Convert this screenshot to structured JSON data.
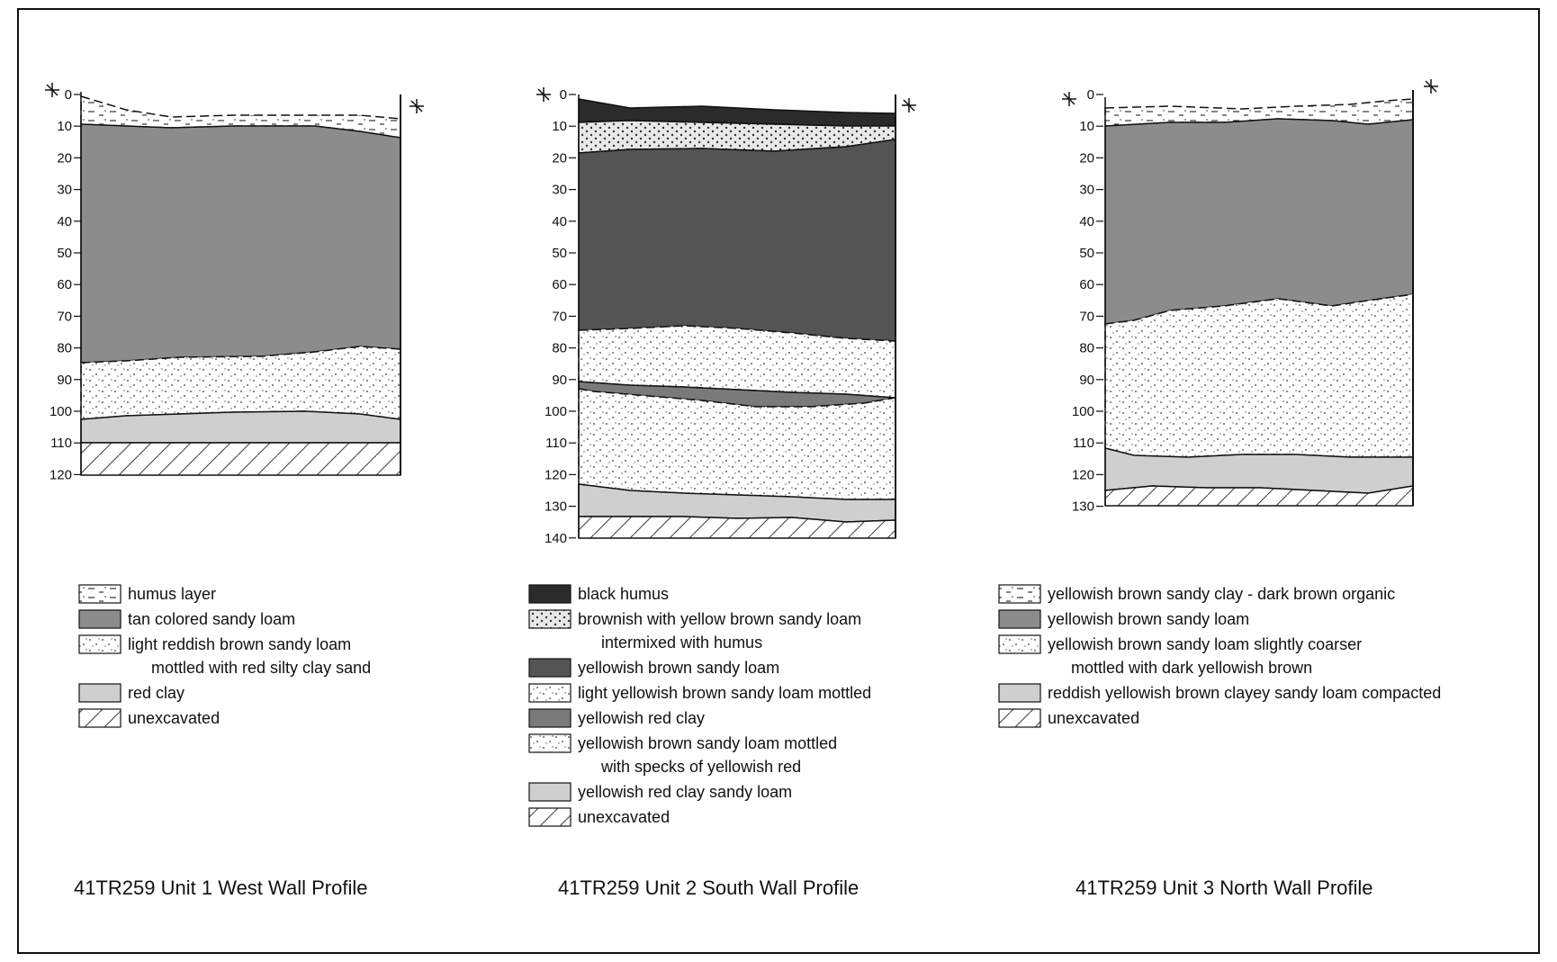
{
  "colors": {
    "black_humus": "#2b2b2b",
    "dark_brown": "#545454",
    "medium_gray": "#8c8c8c",
    "mid_gray": "#7a7a7a",
    "light_gray": "#cfcfcf",
    "white": "#ffffff"
  },
  "profiles": [
    {
      "caption": "41TR259 Unit 1 West Wall Profile",
      "ticks": [
        "0",
        "10",
        "20",
        "30",
        "40",
        "50",
        "60",
        "70",
        "80",
        "90",
        "100",
        "110",
        "120"
      ],
      "legend": [
        {
          "pattern": "humus",
          "lines": [
            "humus layer"
          ]
        },
        {
          "pattern": "tan",
          "lines": [
            "tan colored sandy loam"
          ]
        },
        {
          "pattern": "dots",
          "lines": [
            "light reddish brown sandy loam",
            "mottled with red silty clay sand"
          ]
        },
        {
          "pattern": "redclay",
          "lines": [
            "red clay"
          ]
        },
        {
          "pattern": "hatch",
          "lines": [
            "unexcavated"
          ]
        }
      ]
    },
    {
      "caption": "41TR259 Unit 2 South Wall Profile",
      "ticks": [
        "0",
        "10",
        "20",
        "30",
        "40",
        "50",
        "60",
        "70",
        "80",
        "90",
        "100",
        "110",
        "120",
        "130",
        "140"
      ],
      "legend": [
        {
          "pattern": "black",
          "lines": [
            "black humus"
          ]
        },
        {
          "pattern": "mixed",
          "lines": [
            "brownish with yellow brown sandy loam",
            "intermixed with humus"
          ]
        },
        {
          "pattern": "dark",
          "lines": [
            "yellowish brown sandy loam"
          ]
        },
        {
          "pattern": "dots",
          "lines": [
            "light yellowish brown sandy loam mottled"
          ]
        },
        {
          "pattern": "medium",
          "lines": [
            "yellowish red clay"
          ]
        },
        {
          "pattern": "dots",
          "lines": [
            "yellowish brown sandy loam mottled",
            "with specks of yellowish red"
          ]
        },
        {
          "pattern": "redclay",
          "lines": [
            "yellowish red clay sandy loam"
          ]
        },
        {
          "pattern": "hatch",
          "lines": [
            "unexcavated"
          ]
        }
      ]
    },
    {
      "caption": "41TR259 Unit 3 North Wall Profile",
      "ticks": [
        "0",
        "10",
        "20",
        "30",
        "40",
        "50",
        "60",
        "70",
        "80",
        "90",
        "100",
        "110",
        "120",
        "130"
      ],
      "legend": [
        {
          "pattern": "humus",
          "lines": [
            "yellowish brown sandy clay - dark brown organic"
          ]
        },
        {
          "pattern": "tan",
          "lines": [
            "yellowish brown sandy loam"
          ]
        },
        {
          "pattern": "dots",
          "lines": [
            "yellowish brown sandy loam slightly coarser",
            "mottled with dark yellowish brown"
          ]
        },
        {
          "pattern": "redclay",
          "lines": [
            "reddish yellowish brown clayey sandy loam compacted"
          ]
        },
        {
          "pattern": "hatch",
          "lines": [
            "unexcavated"
          ]
        }
      ]
    }
  ]
}
